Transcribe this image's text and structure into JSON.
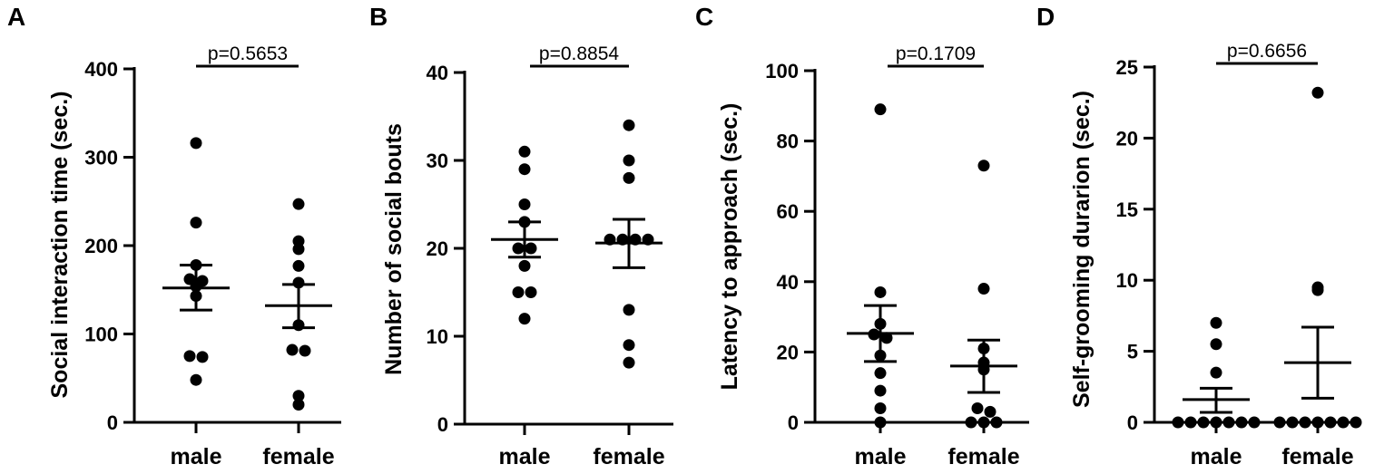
{
  "chart_data": [
    {
      "type": "scatter",
      "panel": "A",
      "ylabel": "Social interaction time (sec.)",
      "ylim": [
        0,
        400
      ],
      "yticks": [
        0,
        100,
        200,
        300,
        400
      ],
      "categories": [
        "male",
        "female"
      ],
      "p_value": "p=0.5653",
      "series": [
        {
          "name": "male",
          "values": [
            316,
            226,
            178,
            162,
            160,
            154,
            143,
            75,
            74,
            48
          ],
          "mean": 152,
          "sem_low": 127,
          "sem_high": 178
        },
        {
          "name": "female",
          "values": [
            247,
            205,
            196,
            177,
            158,
            110,
            82,
            81,
            30,
            20
          ],
          "mean": 132,
          "sem_low": 107,
          "sem_high": 156
        }
      ]
    },
    {
      "type": "scatter",
      "panel": "B",
      "ylabel": "Number of social bouts",
      "ylim": [
        0,
        40
      ],
      "yticks": [
        0,
        10,
        20,
        30,
        40
      ],
      "categories": [
        "male",
        "female"
      ],
      "p_value": "p=0.8854",
      "series": [
        {
          "name": "male",
          "values": [
            31,
            29,
            25,
            23,
            20,
            20,
            18,
            15,
            15,
            12
          ],
          "mean": 21,
          "sem_low": 19,
          "sem_high": 23
        },
        {
          "name": "female",
          "values": [
            34,
            30,
            28,
            21,
            21,
            21,
            13,
            9,
            7,
            21
          ],
          "mean": 20.6,
          "sem_low": 17.8,
          "sem_high": 23.3
        }
      ]
    },
    {
      "type": "scatter",
      "panel": "C",
      "ylabel": "Latency to approach (sec.)",
      "ylim": [
        0,
        100
      ],
      "yticks": [
        0,
        20,
        40,
        60,
        80,
        100
      ],
      "categories": [
        "male",
        "female"
      ],
      "p_value": "p=0.1709",
      "series": [
        {
          "name": "male",
          "values": [
            89,
            37,
            28,
            25,
            24,
            19,
            14,
            9,
            4,
            0
          ],
          "mean": 25.3,
          "sem_low": 17.3,
          "sem_high": 33.2
        },
        {
          "name": "female",
          "values": [
            73,
            38,
            21,
            17,
            15,
            4,
            3,
            0,
            0,
            0
          ],
          "mean": 16,
          "sem_low": 8.5,
          "sem_high": 23.4
        }
      ]
    },
    {
      "type": "scatter",
      "panel": "D",
      "ylabel": "Self-grooming durarion (sec.)",
      "ylim": [
        0,
        25
      ],
      "yticks": [
        0,
        5,
        10,
        15,
        20,
        25
      ],
      "categories": [
        "male",
        "female"
      ],
      "p_value": "p=0.6656",
      "series": [
        {
          "name": "male",
          "values": [
            7,
            5.5,
            3.5,
            0,
            0,
            0,
            0,
            0,
            0,
            0
          ],
          "mean": 1.6,
          "sem_low": 0.7,
          "sem_high": 2.4
        },
        {
          "name": "female",
          "values": [
            23.2,
            9.5,
            9.3,
            0,
            0,
            0,
            0,
            0,
            0,
            0
          ],
          "mean": 4.2,
          "sem_low": 1.7,
          "sem_high": 6.7
        }
      ]
    }
  ]
}
